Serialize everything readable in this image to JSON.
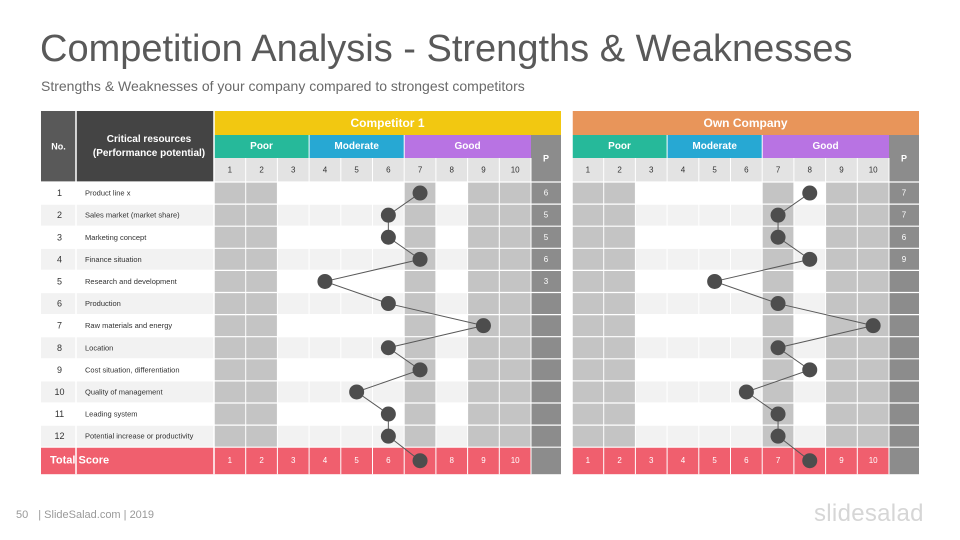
{
  "slide": {
    "title": "Competition Analysis - Strengths & Weaknesses",
    "subtitle": "Strengths & Weaknesses of your company compared to strongest competitors",
    "page_number": "50",
    "footer_text": "| SlideSalad.com | 2019",
    "logo_text": "slidesalad"
  },
  "table": {
    "col_no": "No.",
    "col_resources_line1": "Critical resources",
    "col_resources_line2": "(Performance potential)",
    "groups": [
      {
        "name": "Competitor  1",
        "color": "#f2c811",
        "p_values": [
          "6",
          "5",
          "5",
          "6",
          "3",
          "",
          "",
          "",
          "",
          "",
          "",
          ""
        ],
        "scores": [
          7,
          6,
          6,
          7,
          4,
          6,
          9,
          6,
          7,
          5,
          6,
          6
        ],
        "total_marker": 7
      },
      {
        "name": "Own Company",
        "color": "#e8955a",
        "p_values": [
          "7",
          "7",
          "6",
          "9",
          "",
          "",
          "",
          "",
          "",
          "",
          "",
          ""
        ],
        "scores": [
          8,
          7,
          7,
          8,
          5,
          7,
          10,
          7,
          8,
          6,
          7,
          7
        ],
        "total_marker": 8
      }
    ],
    "bands": [
      {
        "label": "Poor",
        "color": "#26b99a"
      },
      {
        "label": "Moderate",
        "color": "#27a8d3"
      },
      {
        "label": "Good",
        "color": "#b873e3"
      }
    ],
    "p_label": "P",
    "scale": [
      "1",
      "2",
      "3",
      "4",
      "5",
      "6",
      "7",
      "8",
      "9",
      "10"
    ],
    "rows": [
      {
        "no": "1",
        "label": "Product line x"
      },
      {
        "no": "2",
        "label": "Sales market (market share)"
      },
      {
        "no": "3",
        "label": "Marketing concept"
      },
      {
        "no": "4",
        "label": "Finance situation"
      },
      {
        "no": "5",
        "label": "Research and development"
      },
      {
        "no": "6",
        "label": "Production"
      },
      {
        "no": "7",
        "label": "Raw materials and energy"
      },
      {
        "no": "8",
        "label": "Location"
      },
      {
        "no": "9",
        "label": "Cost situation, differentiation"
      },
      {
        "no": "10",
        "label": "Quality of management"
      },
      {
        "no": "11",
        "label": "Leading system"
      },
      {
        "no": "12",
        "label": "Potential increase or productivity"
      }
    ],
    "total_label": "Total Score",
    "colors": {
      "header_dark": "#595959",
      "p_column": "#8c8c8c",
      "shaded_cell": "#c4c4c4",
      "total_row": "#f05f6e",
      "marker": "#4d4d4d",
      "line": "#595959"
    }
  }
}
